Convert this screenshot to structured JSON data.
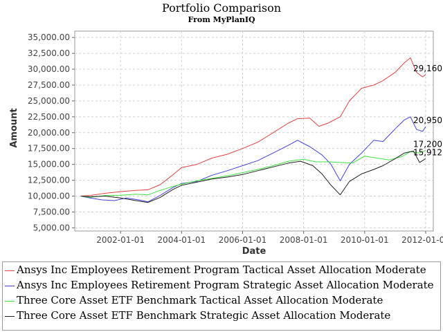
{
  "chart_data": {
    "type": "line",
    "title": "Portfolio Comparison",
    "subtitle": "From MyPlanIQ",
    "xlabel": "Date",
    "ylabel": "Amount",
    "grid": true,
    "xlim": [
      2000.5,
      2012.25
    ],
    "ylim": [
      4500,
      36000
    ],
    "yticks": [
      5000,
      7500,
      10000,
      12500,
      15000,
      17500,
      20000,
      22500,
      25000,
      27500,
      30000,
      32500,
      35000
    ],
    "ytick_labels": [
      "5,000.00",
      "7,500.00",
      "10,000.00",
      "12,500.00",
      "15,000.00",
      "17,500.00",
      "20,000.00",
      "22,500.00",
      "25,000.00",
      "27,500.00",
      "30,000.00",
      "32,500.00",
      "35,000.00"
    ],
    "xticks": [
      2002,
      2004,
      2006,
      2008,
      2010,
      2012
    ],
    "xtick_labels": [
      "2002-01-01",
      "2004-01-01",
      "2006-01-01",
      "2008-01-01",
      "2010-01-01",
      "2012-01-01"
    ],
    "series": [
      {
        "name": "Ansys Inc Employees Retirement Program Tactical Asset Allocation Moderate",
        "color": "#e04040",
        "end_label": "29,160",
        "x": [
          2000.7,
          2001.0,
          2001.5,
          2002.0,
          2002.5,
          2002.9,
          2003.3,
          2003.7,
          2004.0,
          2004.5,
          2005.0,
          2005.5,
          2006.0,
          2006.5,
          2007.0,
          2007.5,
          2007.8,
          2008.2,
          2008.5,
          2008.8,
          2009.2,
          2009.5,
          2009.9,
          2010.3,
          2010.6,
          2011.0,
          2011.3,
          2011.5,
          2011.7,
          2011.9,
          2012.0
        ],
        "values": [
          10000,
          10100,
          10450,
          10700,
          10900,
          11000,
          11800,
          13300,
          14500,
          15000,
          16000,
          16600,
          17500,
          18500,
          20000,
          21500,
          22200,
          22300,
          21000,
          21500,
          22500,
          25000,
          27000,
          27500,
          28200,
          29500,
          31000,
          31800,
          29500,
          28800,
          29160
        ]
      },
      {
        "name": "Ansys Inc Employees Retirement Program Strategic Asset Allocation Moderate",
        "color": "#4040e0",
        "end_label": "20,950",
        "x": [
          2000.7,
          2001.0,
          2001.4,
          2001.8,
          2002.2,
          2002.6,
          2002.9,
          2003.3,
          2003.7,
          2004.0,
          2004.5,
          2005.0,
          2005.5,
          2006.0,
          2006.5,
          2007.0,
          2007.5,
          2007.8,
          2008.2,
          2008.6,
          2008.9,
          2009.2,
          2009.5,
          2009.9,
          2010.3,
          2010.6,
          2011.0,
          2011.3,
          2011.5,
          2011.7,
          2011.9,
          2012.0
        ],
        "values": [
          10000,
          9700,
          9400,
          9300,
          9700,
          9400,
          9100,
          10100,
          11300,
          12000,
          12300,
          13300,
          14000,
          14800,
          15600,
          16800,
          18000,
          18800,
          17800,
          16500,
          15000,
          12400,
          15000,
          16800,
          18800,
          18600,
          20600,
          22000,
          22500,
          20500,
          20200,
          20950
        ]
      },
      {
        "name": "Three Core Asset ETF Benchmark Tactical Asset Allocation Moderate",
        "color": "#40e040",
        "end_label": "17,200",
        "x": [
          2000.7,
          2001.0,
          2001.5,
          2002.0,
          2002.5,
          2002.9,
          2003.3,
          2003.7,
          2004.0,
          2004.5,
          2005.0,
          2005.5,
          2006.0,
          2006.5,
          2007.0,
          2007.5,
          2008.0,
          2008.4,
          2008.8,
          2009.2,
          2009.6,
          2010.0,
          2010.4,
          2010.8,
          2011.2,
          2011.5,
          2011.8,
          2012.0
        ],
        "values": [
          10000,
          9800,
          10100,
          10150,
          10300,
          10200,
          10900,
          11500,
          11900,
          12400,
          12800,
          13200,
          13700,
          14200,
          14800,
          15500,
          15800,
          15400,
          15400,
          15300,
          15200,
          16300,
          16000,
          15700,
          16200,
          17000,
          16800,
          17200
        ]
      },
      {
        "name": "Three Core Asset ETF Benchmark Strategic Asset Allocation Moderate",
        "color": "#202020",
        "end_label": "15,912",
        "x": [
          2000.7,
          2001.0,
          2001.5,
          2002.0,
          2002.5,
          2002.9,
          2003.3,
          2003.7,
          2004.0,
          2004.5,
          2005.0,
          2005.5,
          2006.0,
          2006.5,
          2007.0,
          2007.5,
          2007.9,
          2008.3,
          2008.6,
          2008.9,
          2009.2,
          2009.5,
          2009.9,
          2010.3,
          2010.6,
          2011.0,
          2011.3,
          2011.6,
          2011.8,
          2012.0
        ],
        "values": [
          10000,
          9900,
          10000,
          9700,
          9300,
          9000,
          9800,
          11000,
          11700,
          12200,
          12700,
          13000,
          13400,
          14000,
          14600,
          15200,
          15500,
          14800,
          13500,
          11700,
          10200,
          12300,
          13500,
          14200,
          14800,
          15900,
          16800,
          17100,
          15300,
          15912
        ]
      }
    ]
  }
}
